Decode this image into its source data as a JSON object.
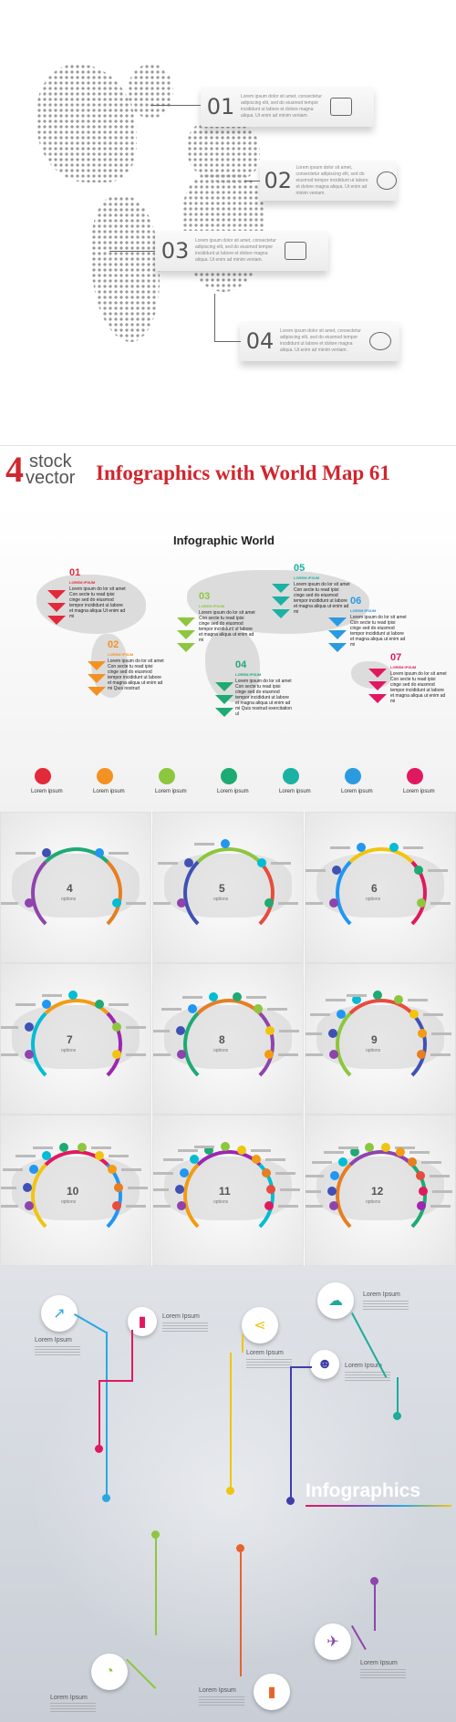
{
  "section1": {
    "cards": [
      {
        "num": "01",
        "text": "Lorem ipsum dolor sit amet, consectetur adipiscing elit, sed do eiusmod tempor incididunt ut labore et dolore magna aliqua. Ut enim ad minim veniam.",
        "icon": "chart-icon"
      },
      {
        "num": "02",
        "text": "Lorem ipsum dolor sit amet, consectetur adipiscing elit, sed do eiusmod tempor incididunt ut labore et dolore magna aliqua. Ut enim ad minim veniam.",
        "icon": "globe-icon"
      },
      {
        "num": "03",
        "text": "Lorem ipsum dolor sit amet, consectetur adipiscing elit, sed do eiusmod tempor incididunt ut labore et dolore magna aliqua. Ut enim ad minim veniam.",
        "icon": "presentation-icon"
      },
      {
        "num": "04",
        "text": "Lorem ipsum dolor sit amet, consectetur adipiscing elit, sed do eiusmod tempor incididunt ut labore et dolore magna aliqua. Ut enim ad minim veniam.",
        "icon": "pie-icon"
      }
    ]
  },
  "banner": {
    "logo_num": "4",
    "logo_top": "stock",
    "logo_bottom": "vector",
    "title": "Infographics with World Map 61"
  },
  "section2": {
    "title": "Infographic World",
    "items": [
      {
        "num": "01",
        "heading": "LOREM IPSUM",
        "text": "Lorem ipsum do lor sit amet Con secte tu read ipisi cinge sed do eiusmod tempor incididunt ut labore et magna aliqua Ut enim ad mi",
        "color": "#e22a3a"
      },
      {
        "num": "02",
        "heading": "LOREM IPSUM",
        "text": "Lorem ipsum do lor sit amet Con secte tu read ipisi cinge sed do eiusmod tempor incididunt ut labore et magna aliqua ut enim ad mi Quis nostrud",
        "color": "#f39222"
      },
      {
        "num": "03",
        "heading": "LOREM IPSUM",
        "text": "Lorem ipsum do lor sit amet Con secte tu read ipisi cinge sed do eiusmod tempor incididunt ut labore et magna aliqua ut enim ad mi",
        "color": "#8dc63f"
      },
      {
        "num": "04",
        "heading": "LOREM IPSUM",
        "text": "Lorem ipsum do lor sit amet Con secte tu read ipisi cinge sed do eiusmod tempor incididunt ut labore et magna aliqua ut enim ad mi Quis nostrud exercitation ul",
        "color": "#1eaa73"
      },
      {
        "num": "05",
        "heading": "LOREM IPSUM",
        "text": "Lorem ipsum do lor sit amet Con secte tu read ipisi cinge sed do eiusmod tempor incididunt ut labore et magna aliqua ut enim ad mi",
        "color": "#1bb2a3"
      },
      {
        "num": "06",
        "heading": "LOREM IPSUM",
        "text": "Lorem ipsum do lor sit amet Con secte tu read ipisi cinge sed do eiusmod tempor incididunt ut labore et magna aliqua ut enim ad mi",
        "color": "#2a9be0"
      },
      {
        "num": "07",
        "heading": "LOREM IPSUM",
        "text": "Lorem ipsum do lor sit amet Con secte tu read ipisi cinge sed do eiusmod tempor incididunt ut labore et magna aliqua ut enim ad mi",
        "color": "#e0195f"
      }
    ],
    "legend": [
      {
        "label": "Lorem ipsum",
        "color": "#e22a3a"
      },
      {
        "label": "Lorem ipsum",
        "color": "#f39222"
      },
      {
        "label": "Lorem ipsum",
        "color": "#8dc63f"
      },
      {
        "label": "Lorem ipsum",
        "color": "#1eaa73"
      },
      {
        "label": "Lorem ipsum",
        "color": "#1bb2a3"
      },
      {
        "label": "Lorem ipsum",
        "color": "#2a9be0"
      },
      {
        "label": "Lorem ipsum",
        "color": "#e0195f"
      }
    ]
  },
  "grid": {
    "options_label": "options",
    "tiles": [
      {
        "num": "4",
        "count": 4
      },
      {
        "num": "5",
        "count": 5
      },
      {
        "num": "6",
        "count": 6
      },
      {
        "num": "7",
        "count": 7
      },
      {
        "num": "8",
        "count": 8
      },
      {
        "num": "9",
        "count": 9
      },
      {
        "num": "10",
        "count": 10
      },
      {
        "num": "11",
        "count": 11
      },
      {
        "num": "12",
        "count": 12
      }
    ],
    "palette": [
      "#8e44ad",
      "#3f51b5",
      "#2196f3",
      "#00bcd4",
      "#1eaa73",
      "#8dc63f",
      "#f1c40f",
      "#f39c12",
      "#e67e22",
      "#e74c3c",
      "#e0195f",
      "#9c27b0"
    ]
  },
  "section4": {
    "title": "Infographics",
    "nodes": [
      {
        "label": "Lorem Ipsum",
        "icon": "trend-icon",
        "glyph": "↗",
        "color": "#29a8e0"
      },
      {
        "label": "Lorem Ipsum",
        "icon": "bar-chart-icon",
        "glyph": "▮",
        "color": "#e0195f"
      },
      {
        "label": "Lorem Ipsum",
        "icon": "share-icon",
        "glyph": "⋖",
        "color": "#f1c40f"
      },
      {
        "label": "Lorem Ipsum",
        "icon": "users-icon",
        "glyph": "☻",
        "color": "#3f3faa"
      },
      {
        "label": "Lorem Ipsum",
        "icon": "cloud-icon",
        "glyph": "☁",
        "color": "#1eaa9b"
      },
      {
        "label": "Lorem Ipsum",
        "icon": "pie-icon",
        "glyph": "◔",
        "color": "#8dc63f"
      },
      {
        "label": "Lorem Ipsum",
        "icon": "bar-chart-icon",
        "glyph": "▮",
        "color": "#e8632b"
      },
      {
        "label": "Lorem Ipsum",
        "icon": "plane-icon",
        "glyph": "✈",
        "color": "#8e44ad"
      }
    ]
  }
}
